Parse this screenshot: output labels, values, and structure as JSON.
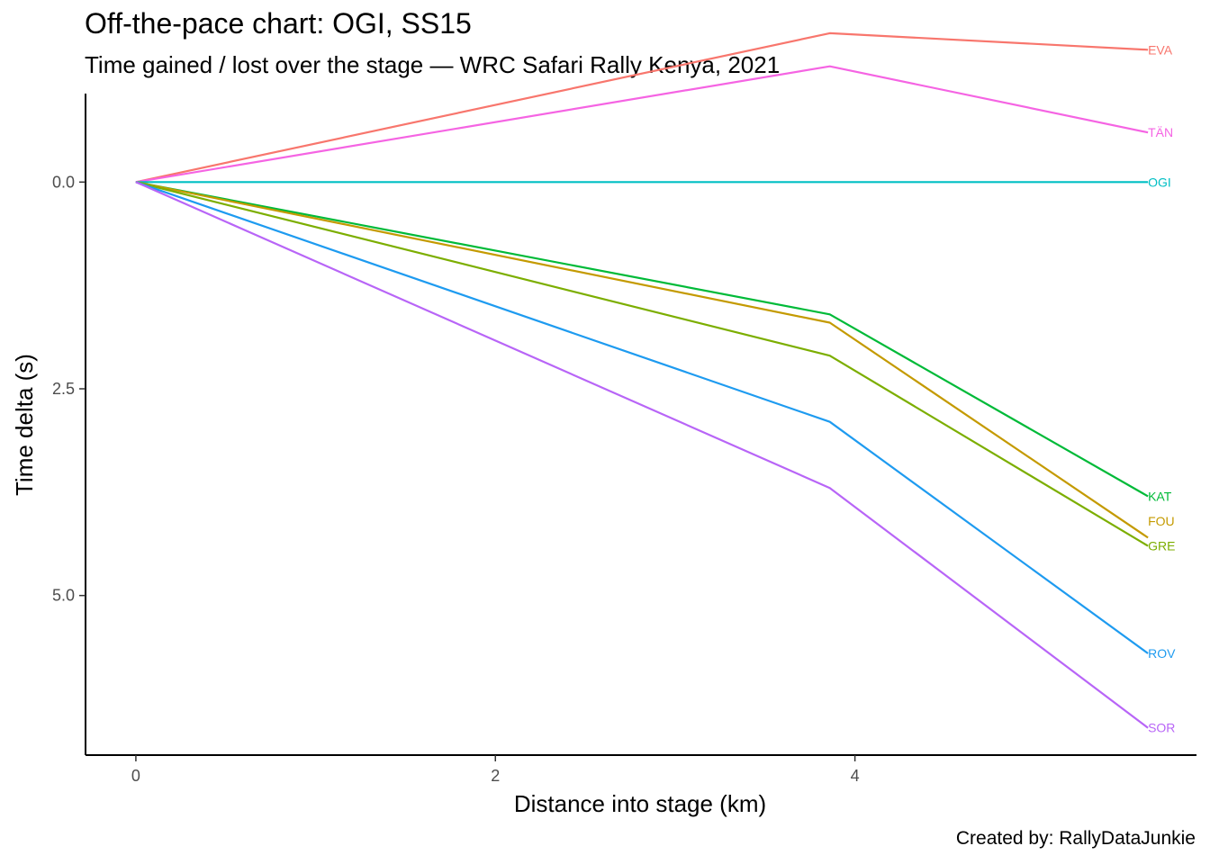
{
  "title": "Off-the-pace chart: OGI, SS15",
  "subtitle": "Time gained / lost over the stage — WRC Safari Rally Kenya, 2021",
  "caption": "Created by: RallyDataJunkie",
  "chart_data": {
    "type": "line",
    "xlabel": "Distance into stage (km)",
    "ylabel": "Time delta (s)",
    "xlim": [
      -0.28,
      5.9
    ],
    "ylim": [
      -1.07,
      6.93
    ],
    "y_reversed": true,
    "grid": false,
    "legend": "direct labels at line ends",
    "x_ticks": [
      0,
      2,
      4
    ],
    "y_ticks": [
      0.0,
      2.5,
      5.0
    ],
    "x_tick_labels": [
      "0",
      "2",
      "4"
    ],
    "y_tick_labels": [
      "0.0",
      "2.5",
      "5.0"
    ],
    "x": [
      0,
      3.86,
      5.63
    ],
    "series": [
      {
        "name": "EVA",
        "color": "#F8766D",
        "values": [
          0,
          -1.8,
          -1.6
        ]
      },
      {
        "name": "TÄN",
        "color": "#F564E3",
        "values": [
          0,
          -1.4,
          -0.6
        ]
      },
      {
        "name": "OGI",
        "color": "#00BFC4",
        "values": [
          0,
          0,
          0
        ]
      },
      {
        "name": "KAT",
        "color": "#00BA38",
        "values": [
          0,
          1.6,
          3.8
        ]
      },
      {
        "name": "FOU",
        "color": "#C49A00",
        "values": [
          0,
          1.7,
          4.3
        ]
      },
      {
        "name": "GRE",
        "color": "#7CAE00",
        "values": [
          0,
          2.1,
          4.4
        ]
      },
      {
        "name": "ROV",
        "color": "#1E9BF0",
        "values": [
          0,
          2.9,
          5.7
        ]
      },
      {
        "name": "SOR",
        "color": "#B865F7",
        "values": [
          0,
          3.7,
          6.6
        ]
      }
    ],
    "end_label_values": [
      -1.6,
      -0.6,
      0,
      3.8,
      4.1,
      4.4,
      5.7,
      6.6
    ]
  }
}
